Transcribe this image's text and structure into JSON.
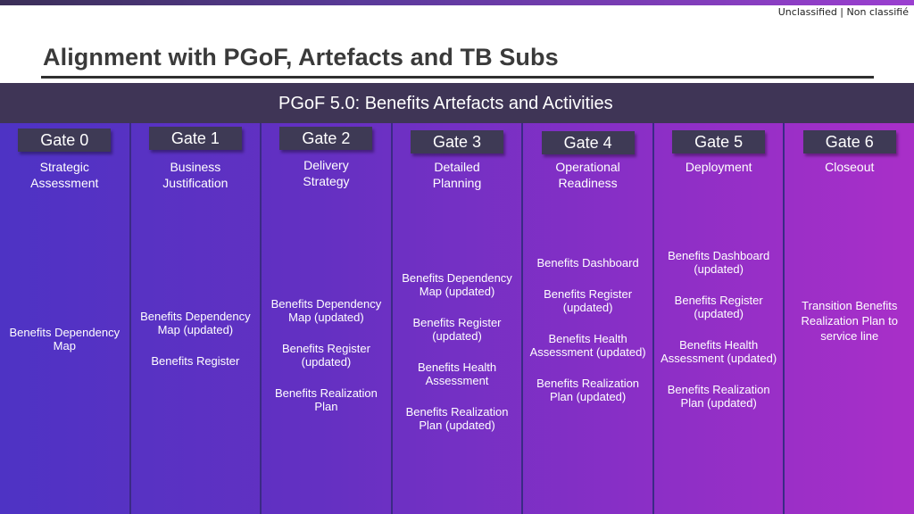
{
  "classification": "Unclassified | Non classifié",
  "title": "Alignment with PGoF, Artefacts and TB Subs",
  "header": "PGoF 5.0: Benefits Artefacts and Activities",
  "gates": [
    {
      "label": "Gate 0",
      "subtitle": "Strategic\nAssessment",
      "artefacts": [
        "Benefits Dependency\nMap"
      ]
    },
    {
      "label": "Gate 1",
      "subtitle": "Business\nJustification",
      "artefacts": [
        "Benefits Dependency\nMap (updated)",
        "Benefits Register"
      ]
    },
    {
      "label": "Gate 2",
      "subtitle": "Delivery\nStrategy",
      "artefacts": [
        "Benefits Dependency\nMap (updated)",
        "Benefits Register\n(updated)",
        "Benefits Realization\nPlan"
      ]
    },
    {
      "label": "Gate 3",
      "subtitle": "Detailed\nPlanning",
      "artefacts": [
        "Benefits Dependency\nMap (updated)",
        "Benefits Register\n(updated)",
        "Benefits Health\nAssessment",
        "Benefits Realization\nPlan (updated)"
      ]
    },
    {
      "label": "Gate 4",
      "subtitle": "Operational\nReadiness",
      "artefacts": [
        "Benefits Dashboard",
        "Benefits Register\n(updated)",
        "Benefits Health\nAssessment (updated)",
        "Benefits Realization\nPlan (updated)"
      ]
    },
    {
      "label": "Gate 5",
      "subtitle": "Deployment",
      "artefacts": [
        "Benefits Dashboard\n(updated)",
        "Benefits Register\n(updated)",
        "Benefits Health\nAssessment (updated)",
        "Benefits Realization\nPlan (updated)"
      ]
    },
    {
      "label": "Gate 6",
      "subtitle": "Closeout",
      "artefacts": [
        "Transition Benefits\nRealization Plan to\nservice line"
      ]
    }
  ]
}
